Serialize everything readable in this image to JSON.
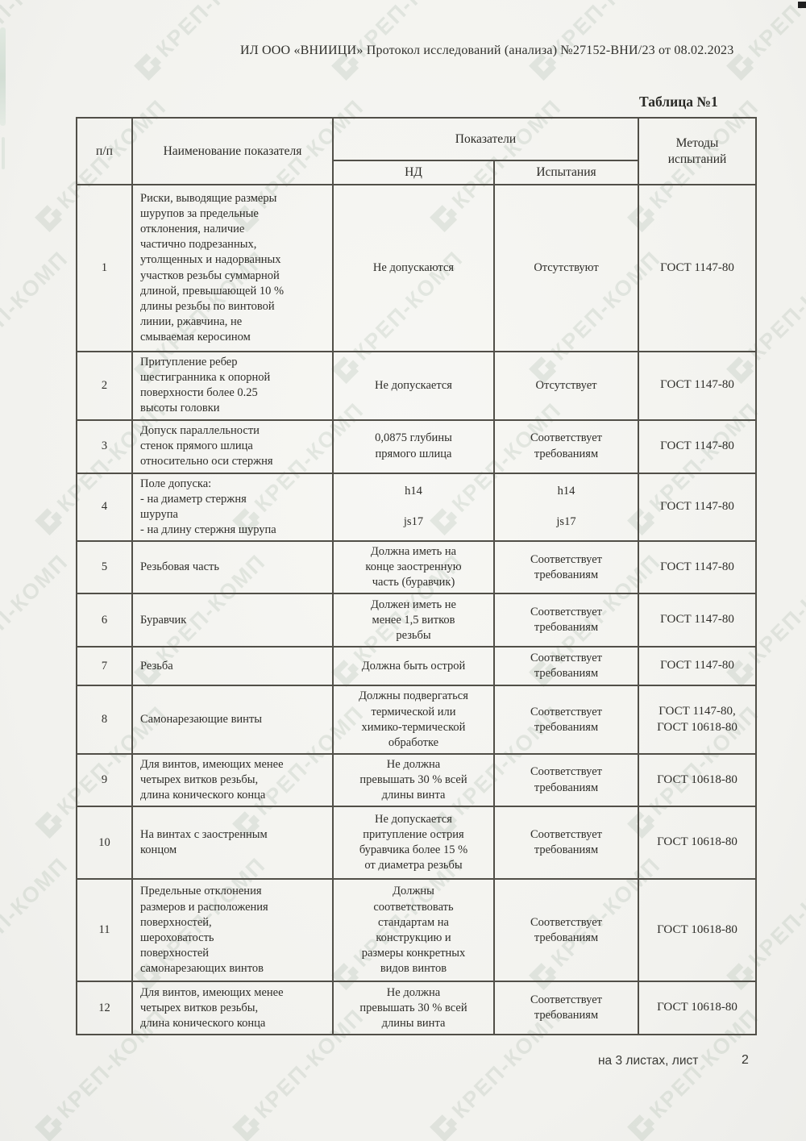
{
  "page": {
    "header": "ИЛ ООО «ВНИИЦИ» Протокол исследований (анализа) №27152-ВНИ/23 от 08.02.2023",
    "table_caption": "Таблица №1",
    "footer_left": "на 3 листах, лист",
    "footer_page": "2",
    "watermark_text": "КРЕП-КОМП"
  },
  "table": {
    "headers": {
      "col_num": "п/п",
      "col_name": "Наименование показателя",
      "col_group": "Показатели",
      "col_nd": "НД",
      "col_test": "Испытания",
      "col_method": "Методы\nиспытаний"
    },
    "rows": [
      {
        "num": "1",
        "name": "Риски, выводящие размеры\nшурупов за предельные\nотклонения, наличие\nчастично подрезанных,\nутолщенных и надорванных\nучастков резьбы суммарной\nдлиной, превышающей 10 %\nдлины резьбы по винтовой\nлинии, ржавчина, не\nсмываемая керосином",
        "nd": "Не допускаются",
        "test": "Отсутствуют",
        "method": "ГОСТ 1147-80"
      },
      {
        "num": "2",
        "name": "Притупление ребер\nшестигранника к опорной\nповерхности более 0.25\nвысоты головки",
        "nd": "Не допускается",
        "test": "Отсутствует",
        "method": "ГОСТ 1147-80"
      },
      {
        "num": "3",
        "name": "Допуск параллельности\nстенок прямого шлица\nотносительно оси стержня",
        "nd": "0,0875 глубины\nпрямого шлица",
        "test": "Соответствует\nтребованиям",
        "method": "ГОСТ 1147-80"
      },
      {
        "num": "4",
        "name": "Поле допуска:\n- на диаметр стержня\nшурупа\n- на длину стержня шурупа",
        "nd": "h14\n\njs17",
        "test": "h14\n\njs17",
        "method": "ГОСТ 1147-80"
      },
      {
        "num": "5",
        "name": "Резьбовая часть",
        "nd": "Должна иметь на\nконце заостренную\nчасть (буравчик)",
        "test": "Соответствует\nтребованиям",
        "method": "ГОСТ 1147-80"
      },
      {
        "num": "6",
        "name": "Буравчик",
        "nd": "Должен иметь не\nменее 1,5 витков\nрезьбы",
        "test": "Соответствует\nтребованиям",
        "method": "ГОСТ 1147-80"
      },
      {
        "num": "7",
        "name": "Резьба",
        "nd": "Должна быть острой",
        "test": "Соответствует\nтребованиям",
        "method": "ГОСТ 1147-80"
      },
      {
        "num": "8",
        "name": "Самонарезающие винты",
        "nd": "Должны подвергаться\nтермической или\nхимико-термической\nобработке",
        "test": "Соответствует\nтребованиям",
        "method": "ГОСТ 1147-80,\nГОСТ 10618-80"
      },
      {
        "num": "9",
        "name": "Для винтов, имеющих менее\nчетырех витков резьбы,\nдлина конического конца",
        "nd": "Не должна\nпревышать 30 % всей\nдлины винта",
        "test": "Соответствует\nтребованиям",
        "method": "ГОСТ 10618-80"
      },
      {
        "num": "10",
        "name": "На винтах с заостренным\nконцом",
        "nd": "Не допускается\nпритупление острия\nбуравчика более 15 %\nот диаметра резьбы",
        "test": "Соответствует\nтребованиям",
        "method": "ГОСТ 10618-80"
      },
      {
        "num": "11",
        "name": "Предельные отклонения\nразмеров и расположения\nповерхностей,\nшероховатость\nповерхностей\nсамонарезающих винтов",
        "nd": "Должны\nсоответствовать\nстандартам на\nконструкцию и\nразмеры конкретных\nвидов винтов",
        "test": "Соответствует\nтребованиям",
        "method": "ГОСТ 10618-80"
      },
      {
        "num": "12",
        "name": "Для винтов, имеющих менее\nчетырех витков резьбы,\nдлина конического конца",
        "nd": "Не должна\nпревышать 30 % всей\nдлины винта",
        "test": "Соответствует\nтребованиям",
        "method": "ГОСТ 10618-80"
      }
    ]
  }
}
